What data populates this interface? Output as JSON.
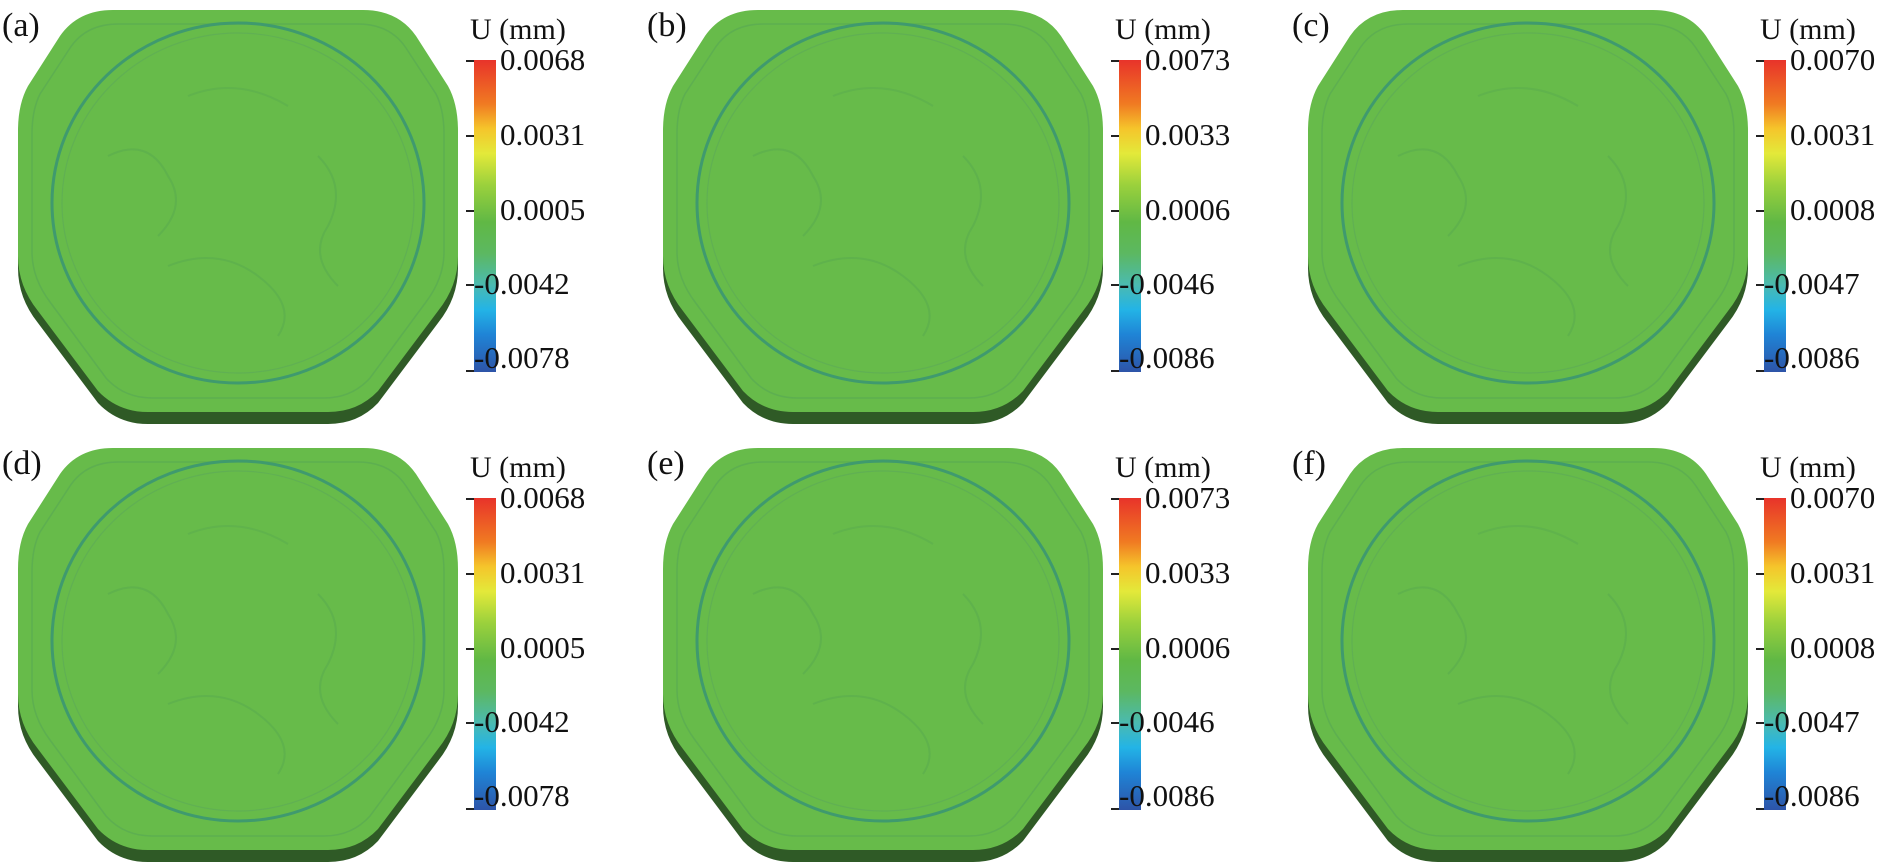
{
  "colorbar_title": "U (mm)",
  "panels": [
    {
      "label": "(a)",
      "ticks": [
        "0.0068",
        "0.0031",
        "0.0005",
        "-0.0042",
        "-0.0078"
      ]
    },
    {
      "label": "(b)",
      "ticks": [
        "0.0073",
        "0.0033",
        "0.0006",
        "-0.0046",
        "-0.0086"
      ]
    },
    {
      "label": "(c)",
      "ticks": [
        "0.0070",
        "0.0031",
        "0.0008",
        "-0.0047",
        "-0.0086"
      ]
    },
    {
      "label": "(d)",
      "ticks": [
        "0.0068",
        "0.0031",
        "0.0005",
        "-0.0042",
        "-0.0078"
      ]
    },
    {
      "label": "(e)",
      "ticks": [
        "0.0073",
        "0.0033",
        "0.0006",
        "-0.0046",
        "-0.0086"
      ]
    },
    {
      "label": "(f)",
      "ticks": [
        "0.0070",
        "0.0031",
        "0.0008",
        "-0.0047",
        "-0.0086"
      ]
    }
  ],
  "colors": {
    "plate_green": "#67bb4a",
    "plate_edge": "#2f5a26",
    "ring_line": "#3f9a6e"
  }
}
